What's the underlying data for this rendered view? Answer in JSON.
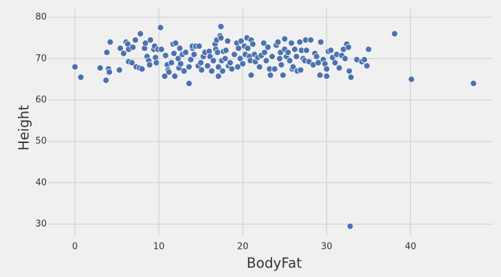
{
  "chart_data": {
    "type": "scatter",
    "xlabel": "BodyFat",
    "ylabel": "Height",
    "color": "#4c72b0",
    "grid": true,
    "xlim": [
      -3.2,
      49.8
    ],
    "ylim": [
      27.2,
      82
    ],
    "xticks": [
      0,
      10,
      20,
      30,
      40
    ],
    "yticks": [
      30,
      40,
      50,
      60,
      70,
      80
    ],
    "x": [
      0,
      0.7,
      3,
      3.7,
      3.8,
      4,
      4.1,
      4.2,
      5.3,
      5.4,
      5.8,
      6.1,
      6.3,
      6.4,
      6.4,
      6.9,
      6.8,
      7.2,
      7.3,
      7.7,
      7.8,
      8,
      8.3,
      8.4,
      8.6,
      8.8,
      8.9,
      9,
      9.4,
      9.5,
      9.6,
      9.7,
      9.9,
      10.2,
      10.3,
      10.7,
      10.8,
      11,
      11.1,
      11.2,
      11.5,
      11.7,
      11.8,
      11.9,
      12,
      12.3,
      12.4,
      12.5,
      12.6,
      12.8,
      13,
      13.2,
      13.6,
      13.6,
      13.8,
      14,
      14,
      14.2,
      14.4,
      14.7,
      14.8,
      15,
      15.1,
      15.3,
      15.5,
      15.8,
      16,
      16.1,
      16.3,
      16.5,
      16.7,
      16.8,
      16.9,
      17,
      17.1,
      17.1,
      17.3,
      17.4,
      17.4,
      17.5,
      17.6,
      17.7,
      17.9,
      18,
      18.2,
      18.3,
      18.5,
      18.7,
      19,
      19.3,
      19.4,
      19.5,
      19.7,
      19.8,
      20,
      20.2,
      20.3,
      20.5,
      20.6,
      20.8,
      20.9,
      21,
      21,
      21.2,
      21.4,
      21.5,
      21.8,
      22,
      22.2,
      22.5,
      22.6,
      22.8,
      23,
      23.2,
      23.3,
      23.5,
      23.8,
      24,
      24.2,
      24.4,
      24.5,
      24.6,
      24.8,
      25,
      25,
      25.2,
      25.4,
      25.6,
      25.8,
      25.9,
      26,
      26.2,
      26.4,
      26.5,
      26.8,
      26.9,
      27,
      27.2,
      27.4,
      27.5,
      27.6,
      27.9,
      28.1,
      28.4,
      28.6,
      28.8,
      29,
      29.2,
      29.3,
      29.6,
      29.8,
      30,
      30,
      30.2,
      30.5,
      30.7,
      31,
      31.2,
      31.5,
      31.8,
      32,
      32.2,
      32.4,
      32.6,
      32.7,
      32.8,
      32.9,
      33.6,
      34.2,
      34.5,
      34.8,
      35,
      38.1,
      40.1,
      47.5
    ],
    "y": [
      68,
      65.5,
      67.75,
      64.75,
      71.5,
      67.5,
      66.75,
      74,
      67.25,
      72.5,
      71.25,
      74,
      73.5,
      72.25,
      69.25,
      72.75,
      69,
      74.5,
      68,
      67.75,
      76,
      67.5,
      72.5,
      73.75,
      70.5,
      69.5,
      68.5,
      74.5,
      72.25,
      73,
      70.25,
      69,
      72.25,
      77.5,
      72.25,
      65.75,
      70.75,
      68.5,
      67.25,
      66.75,
      69,
      73.5,
      71.25,
      65.75,
      73.75,
      70,
      67.75,
      72.5,
      68.75,
      71,
      67,
      71.5,
      64,
      68,
      69.75,
      72.5,
      73,
      71,
      73,
      68.25,
      73,
      69,
      67.25,
      70.5,
      71.5,
      68.25,
      71.75,
      70.5,
      67,
      69.5,
      73.5,
      72.25,
      74.5,
      71.5,
      68,
      65.75,
      75.5,
      77.75,
      75,
      69.5,
      67,
      71.75,
      70,
      72,
      74.25,
      68.25,
      69,
      67.5,
      71,
      73.75,
      68,
      72.5,
      70,
      74.25,
      68.75,
      73,
      71,
      75,
      72.5,
      70.5,
      69.5,
      74.5,
      66,
      73.5,
      71,
      69.25,
      70.25,
      68,
      70.75,
      73.75,
      71.5,
      69.5,
      72.75,
      67.5,
      66,
      70.5,
      67.5,
      73.25,
      74,
      70,
      71.5,
      68.5,
      66,
      72.25,
      74.75,
      70.5,
      71.5,
      69.5,
      73.75,
      67.5,
      68,
      72.25,
      70.5,
      67,
      74,
      67.25,
      72,
      70,
      69.5,
      74.5,
      72,
      69.25,
      74.5,
      68.5,
      71.25,
      70.5,
      69,
      66,
      74,
      69.75,
      68.75,
      65.75,
      67.5,
      71.75,
      72,
      70.25,
      69,
      71,
      67.75,
      70.75,
      72.25,
      70,
      73.5,
      72.75,
      67,
      29.5,
      65.5,
      69.75,
      69.25,
      69.75,
      68.25,
      72.25,
      76,
      65,
      64
    ]
  }
}
